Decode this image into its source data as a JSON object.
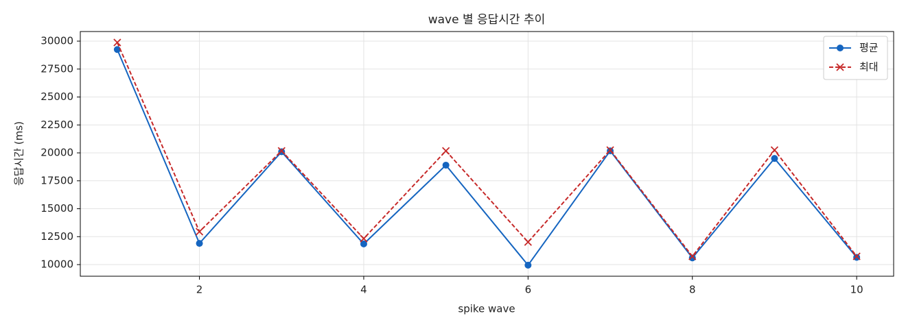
{
  "chart_data": {
    "type": "line",
    "title": "wave 별 응답시간 추이",
    "x_label": "spike wave",
    "y_label": "응답시간 (ms)",
    "x": [
      1,
      2,
      3,
      4,
      5,
      6,
      7,
      8,
      9,
      10
    ],
    "series": [
      {
        "name": "평균",
        "color": "#1565c0",
        "marker": "o",
        "dash": "solid",
        "values": [
          29250,
          11900,
          20100,
          11850,
          18900,
          9950,
          20180,
          10600,
          19500,
          10650
        ]
      },
      {
        "name": "최대",
        "color": "#c62828",
        "marker": "x",
        "dash": "dashed",
        "values": [
          29880,
          12950,
          20180,
          12330,
          20180,
          12020,
          20250,
          10740,
          20250,
          10740
        ]
      }
    ],
    "xlim": [
      0.55,
      10.45
    ],
    "xticks": [
      2,
      4,
      6,
      8,
      10
    ],
    "ylim": [
      8960,
      30860
    ],
    "yticks": [
      10000,
      12500,
      15000,
      17500,
      20000,
      22500,
      25000,
      27500,
      30000
    ],
    "grid": true,
    "legend": "upper right"
  }
}
